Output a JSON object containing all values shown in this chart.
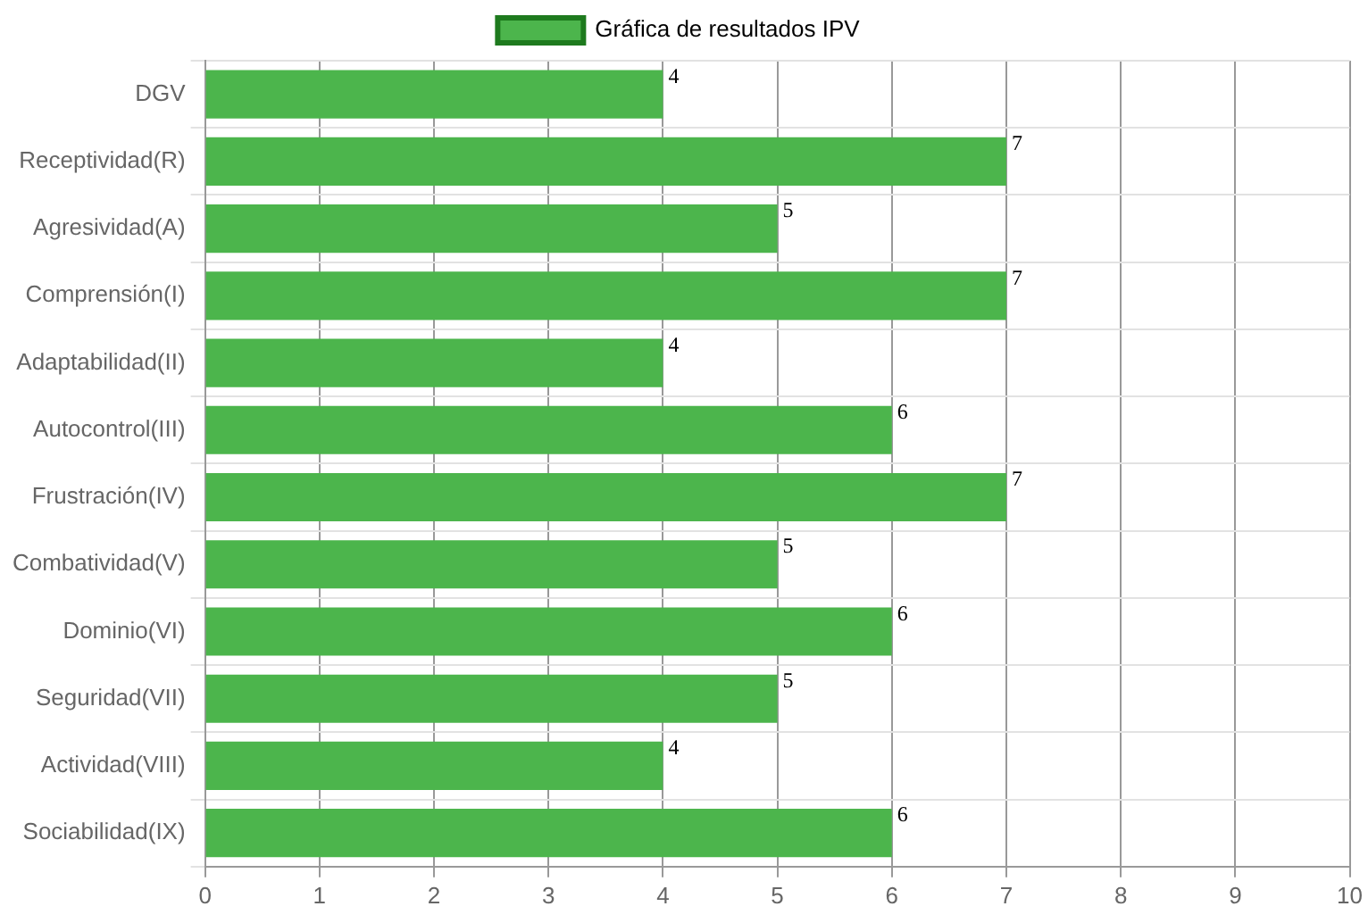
{
  "chart_data": {
    "type": "bar",
    "orientation": "horizontal",
    "categories": [
      "DGV",
      "Receptividad(R)",
      "Agresividad(A)",
      "Comprensión(I)",
      "Adaptabilidad(II)",
      "Autocontrol(III)",
      "Frustración(IV)",
      "Combatividad(V)",
      "Dominio(VI)",
      "Seguridad(VII)",
      "Actividad(VIII)",
      "Sociabilidad(IX)"
    ],
    "series": [
      {
        "name": "Gráfica de resultados IPV",
        "color": "#4cb54c",
        "values": [
          4,
          7,
          5,
          7,
          4,
          6,
          7,
          5,
          6,
          5,
          4,
          6
        ]
      }
    ],
    "xlim": [
      0,
      10
    ],
    "xticks": [
      0,
      1,
      2,
      3,
      4,
      5,
      6,
      7,
      8,
      9,
      10
    ],
    "grid": true,
    "legend": "top",
    "data_labels": true
  }
}
